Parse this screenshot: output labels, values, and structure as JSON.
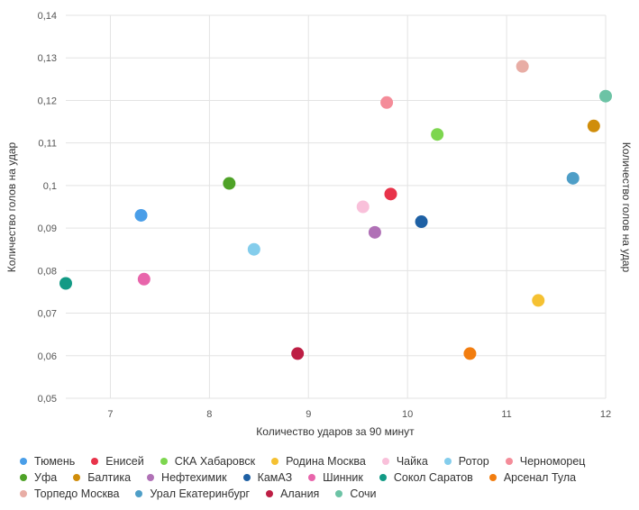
{
  "chart_data": {
    "type": "scatter",
    "xlabel": "Количество ударов за 90 минут",
    "ylabel": "Количество голов на удар",
    "ylabel_right": "Количество голов на удар",
    "xlim": [
      6.55,
      12
    ],
    "ylim": [
      0.05,
      0.14
    ],
    "x_ticks": [
      "7",
      "8",
      "9",
      "10",
      "11",
      "12"
    ],
    "y_ticks": [
      "0,05",
      "0,06",
      "0,07",
      "0,08",
      "0,09",
      "0,1",
      "0,11",
      "0,12",
      "0,13",
      "0,14"
    ],
    "grid": true,
    "legend_position": "bottom",
    "series": [
      {
        "name": "Тюмень",
        "color": "#4a9ee8",
        "x": 7.31,
        "y": 0.093
      },
      {
        "name": "Енисей",
        "color": "#e8334a",
        "x": 9.83,
        "y": 0.098
      },
      {
        "name": "СКА Хабаровск",
        "color": "#7dd64f",
        "x": 10.3,
        "y": 0.112
      },
      {
        "name": "Родина Москва",
        "color": "#f5c132",
        "x": 11.32,
        "y": 0.073
      },
      {
        "name": "Чайка",
        "color": "#f9c0da",
        "x": 9.55,
        "y": 0.095
      },
      {
        "name": "Ротор",
        "color": "#84cdec",
        "x": 8.45,
        "y": 0.085
      },
      {
        "name": "Черноморец",
        "color": "#f48c99",
        "x": 9.79,
        "y": 0.1195
      },
      {
        "name": "Уфа",
        "color": "#4ea227",
        "x": 8.2,
        "y": 0.1005
      },
      {
        "name": "Балтика",
        "color": "#d08d0a",
        "x": 11.88,
        "y": 0.114
      },
      {
        "name": "Нефтехимик",
        "color": "#b071b6",
        "x": 9.67,
        "y": 0.089
      },
      {
        "name": "КамАЗ",
        "color": "#1e60a4",
        "x": 10.14,
        "y": 0.0915
      },
      {
        "name": "Шинник",
        "color": "#e865ab",
        "x": 7.34,
        "y": 0.078
      },
      {
        "name": "Сокол Саратов",
        "color": "#129a85",
        "x": 6.55,
        "y": 0.077
      },
      {
        "name": "Арсенал Тула",
        "color": "#f27d0f",
        "x": 10.63,
        "y": 0.0605
      },
      {
        "name": "Торпедо Москва",
        "color": "#e8ada5",
        "x": 11.16,
        "y": 0.128
      },
      {
        "name": "Урал Екатеринбург",
        "color": "#4e9ec7",
        "x": 11.67,
        "y": 0.1017
      },
      {
        "name": "Алания",
        "color": "#bd1e44",
        "x": 8.89,
        "y": 0.0605
      },
      {
        "name": "Сочи",
        "color": "#6cc3a5",
        "x": 12.0,
        "y": 0.121
      }
    ]
  }
}
